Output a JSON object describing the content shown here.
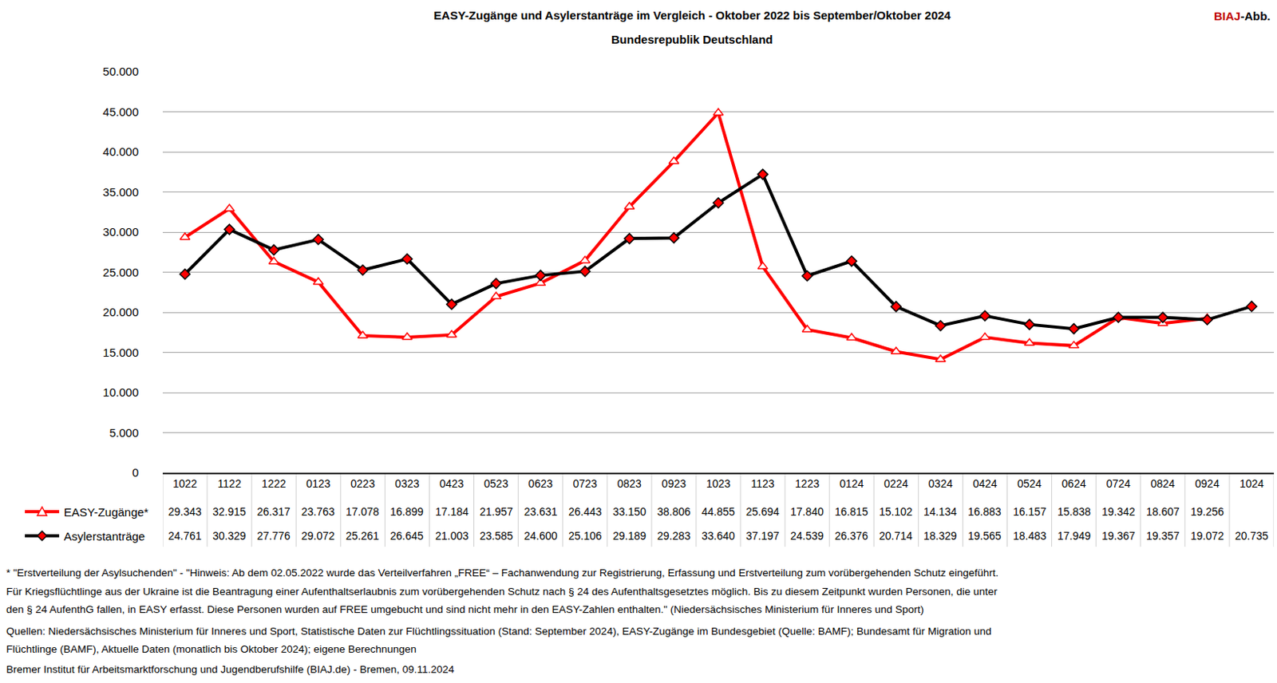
{
  "chart_data": {
    "type": "line",
    "title": "EASY-Zugänge und Asylerstanträge im Vergleich - Oktober 2022 bis September/Oktober 2024",
    "subtitle": "Bundesrepublik Deutschland",
    "badge": [
      "BIAJ",
      "-Abb."
    ],
    "categories": [
      "1022",
      "1122",
      "1222",
      "0123",
      "0223",
      "0323",
      "0423",
      "0523",
      "0623",
      "0723",
      "0823",
      "0923",
      "1023",
      "1123",
      "1223",
      "0124",
      "0224",
      "0324",
      "0424",
      "0524",
      "0624",
      "0724",
      "0824",
      "0924",
      "1024"
    ],
    "series": [
      {
        "name": "EASY-Zugänge*",
        "color": "#ff0000",
        "marker": "triangle",
        "line_style": "solid",
        "values": [
          29343,
          32915,
          26317,
          23763,
          17078,
          16899,
          17184,
          21957,
          23631,
          26443,
          33150,
          38806,
          44855,
          25694,
          17840,
          16815,
          15102,
          14134,
          16883,
          16157,
          15838,
          19342,
          18607,
          19256,
          null
        ],
        "value_labels": [
          "29.343",
          "32.915",
          "26.317",
          "23.763",
          "17.078",
          "16.899",
          "17.184",
          "21.957",
          "23.631",
          "26.443",
          "33.150",
          "38.806",
          "44.855",
          "25.694",
          "17.840",
          "16.815",
          "15.102",
          "14.134",
          "16.883",
          "16.157",
          "15.838",
          "19.342",
          "18.607",
          "19.256",
          null
        ]
      },
      {
        "name": "Asylerstanträge",
        "color": "#000000",
        "marker": "diamond",
        "line_style": "solid",
        "values": [
          24761,
          30329,
          27776,
          29072,
          25261,
          26645,
          21003,
          23585,
          24600,
          25106,
          29189,
          29283,
          33640,
          37197,
          24539,
          26376,
          20714,
          18329,
          19565,
          18483,
          17949,
          19367,
          19357,
          19072,
          20735
        ],
        "value_labels": [
          "24.761",
          "30.329",
          "27.776",
          "29.072",
          "25.261",
          "26.645",
          "21.003",
          "23.585",
          "24.600",
          "25.106",
          "29.189",
          "29.283",
          "33.640",
          "37.197",
          "24.539",
          "26.376",
          "20.714",
          "18.329",
          "19.565",
          "18.483",
          "17.949",
          "19.367",
          "19.357",
          "19.072",
          "20.735"
        ]
      }
    ],
    "ylim": [
      0,
      50000
    ],
    "yticks": [
      0,
      {
        "value": 5000,
        "label": "5.000"
      },
      {
        "value": 10000,
        "label": "10.000"
      },
      {
        "value": 15000,
        "label": "15.000"
      },
      {
        "value": 20000,
        "label": "20.000"
      },
      {
        "value": 25000,
        "label": "25.000"
      },
      {
        "value": 30000,
        "label": "30.000"
      },
      {
        "value": 35000,
        "label": "35.000"
      },
      {
        "value": 40000,
        "label": "40.000"
      },
      {
        "value": 45000,
        "label": "45.000"
      },
      {
        "value": 50000,
        "label": "50.000"
      }
    ],
    "grid": true,
    "notes": [
      "* \"Erstverteilung der Asylsuchenden\" - \"Hinweis: Ab dem 02.05.2022 wurde das Verteilverfahren „FREE“ – Fachanwendung zur Registrierung, Erfassung und Erstverteilung zum vorübergehenden Schutz eingeführt.",
      "Für Kriegsflüchtlinge aus der Ukraine ist die Beantragung einer Aufenthaltserlaubnis zum vorübergehenden Schutz nach § 24 des Aufenthaltsgesetztes möglich. Bis zu diesem Zeitpunkt wurden Personen, die unter",
      "den § 24 AufenthG fallen, in EASY erfasst. Diese Personen wurden auf FREE umgebucht und sind nicht mehr in den EASY-Zahlen enthalten.\" (Niedersächsisches Ministerium für Inneres und Sport)",
      "Quellen: Niedersächsisches Ministerium für Inneres und Sport, Statistische Daten zur Flüchtlingssituation (Stand: September 2024), EASY-Zugänge im Bundesgebiet (Quelle: BAMF); Bundesamt für Migration und",
      "Flüchtlinge (BAMF), Aktuelle Daten (monatlich bis Oktober 2024); eigene Berechnungen",
      "Bremer Institut für Arbeitsmarktforschung und Jugendberufshilfe (BIAJ.de) - Bremen, 09.11.2024"
    ]
  }
}
